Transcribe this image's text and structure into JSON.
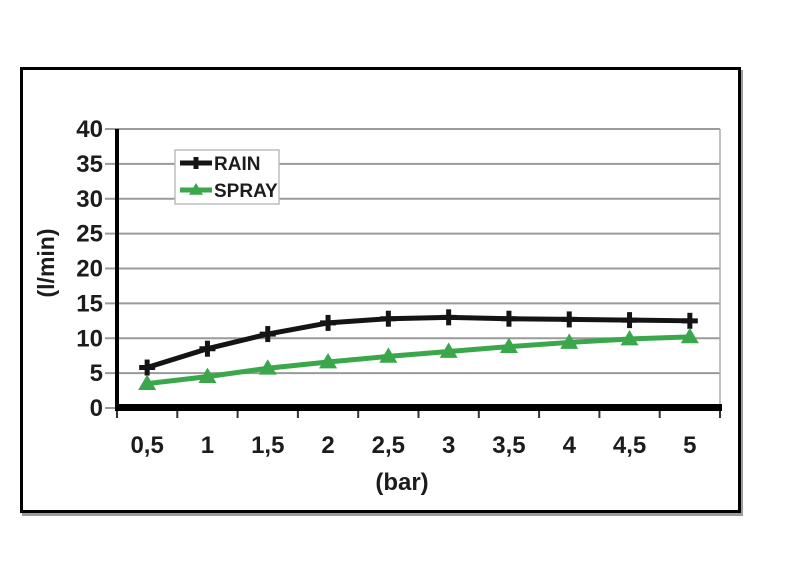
{
  "chart_data": {
    "type": "line",
    "categories": [
      "0,5",
      "1",
      "1,5",
      "2",
      "2,5",
      "3",
      "3,5",
      "4",
      "4,5",
      "5"
    ],
    "x_values": [
      0.5,
      1,
      1.5,
      2,
      2.5,
      3,
      3.5,
      4,
      4.5,
      5
    ],
    "series": [
      {
        "name": "RAIN",
        "color": "#141414",
        "marker": "plus",
        "values": [
          5.8,
          8.5,
          10.6,
          12.2,
          12.8,
          13.0,
          12.8,
          12.7,
          12.6,
          12.5
        ]
      },
      {
        "name": "SPRAY",
        "color": "#3aa74b",
        "marker": "triangle",
        "values": [
          3.5,
          4.5,
          5.7,
          6.6,
          7.4,
          8.1,
          8.8,
          9.4,
          9.9,
          10.2
        ]
      }
    ],
    "xlabel": "(bar)",
    "ylabel": "(l/min)",
    "ylim": [
      0,
      40
    ],
    "yticks": [
      0,
      5,
      10,
      15,
      20,
      25,
      30,
      35,
      40
    ],
    "grid": true,
    "legend": {
      "position": "top-left"
    },
    "colors": {
      "background": "#ffffff",
      "figure_border": "#000000",
      "figure_shadow": "#9c9c9c",
      "gridline": "#9a9a9a",
      "plot_right_edge": "#ababab",
      "axis": "#000000",
      "x_tick": "#333333",
      "text": "#1c1c1c",
      "legend_border": "#bdbdbd",
      "legend_background": "#ffffff"
    }
  }
}
